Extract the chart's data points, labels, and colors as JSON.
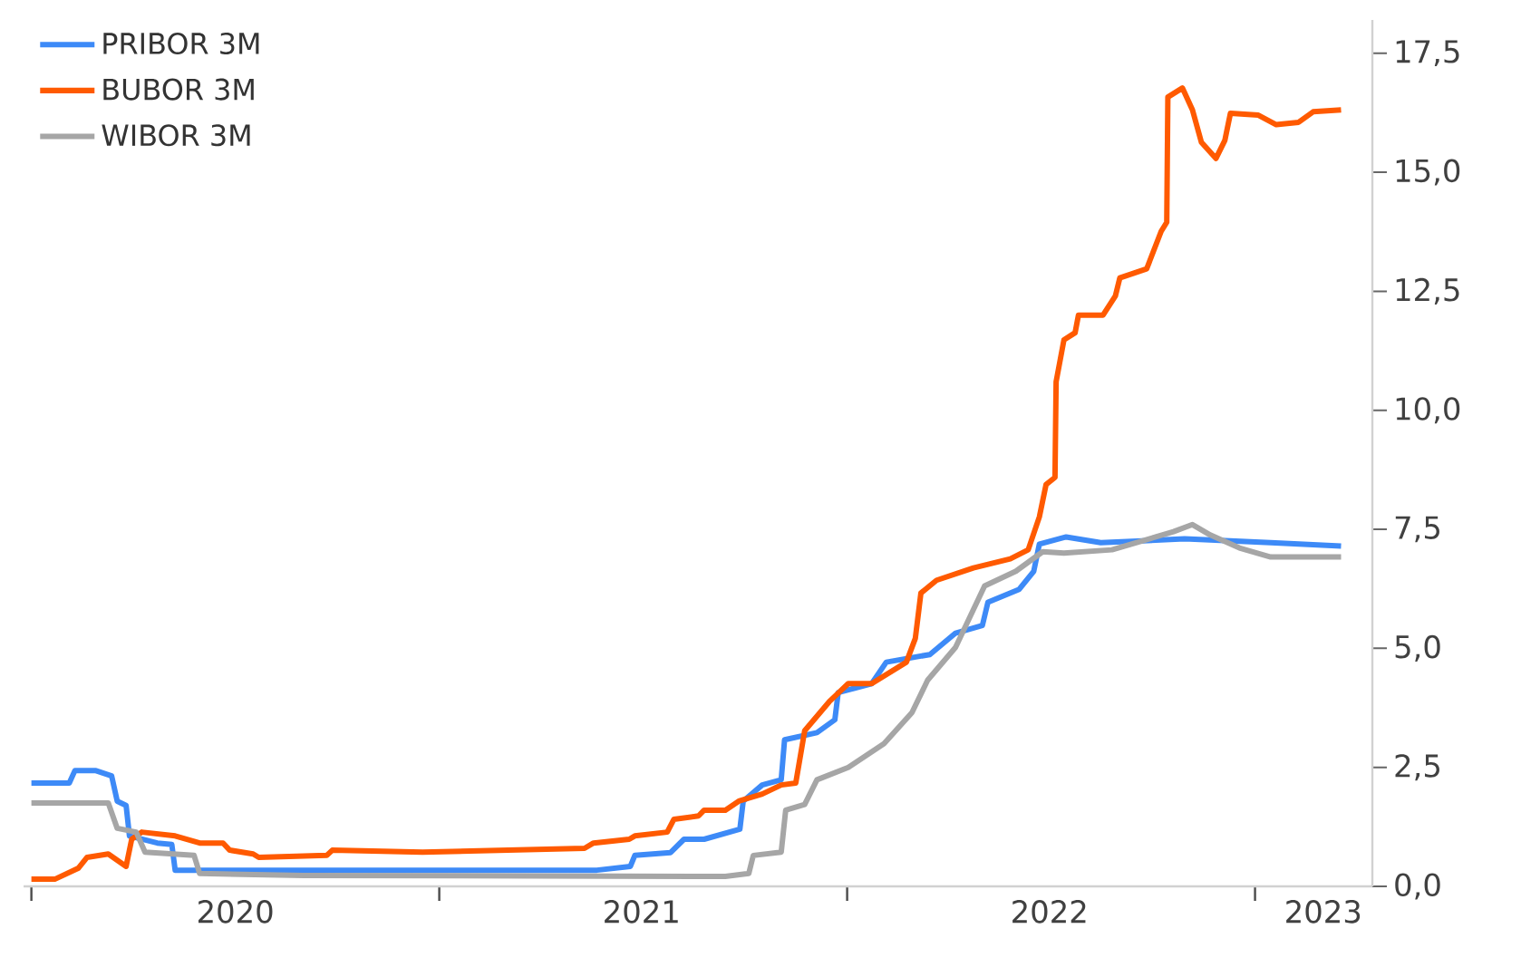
{
  "chart_data": {
    "type": "line",
    "xlim": [
      "2019-12-25",
      "2023-04-16"
    ],
    "ylim": [
      0,
      18.2
    ],
    "xticks": [
      {
        "value": "2020-01-01",
        "label": null
      },
      {
        "value": "2021-01-01",
        "label": null
      },
      {
        "value": "2022-01-01",
        "label": null
      },
      {
        "value": "2023-01-01",
        "label": null
      },
      {
        "value": "2020-07-02",
        "label": "2020"
      },
      {
        "value": "2021-07-01",
        "label": "2021"
      },
      {
        "value": "2022-07-01",
        "label": "2022"
      },
      {
        "value": "2023-03-03",
        "label": "2023"
      }
    ],
    "yticks": [
      {
        "value": 0,
        "label": "0,0"
      },
      {
        "value": 2.5,
        "label": "2,5"
      },
      {
        "value": 5,
        "label": "5,0"
      },
      {
        "value": 7.5,
        "label": "7,5"
      },
      {
        "value": 10,
        "label": "10,0"
      },
      {
        "value": 12.5,
        "label": "12,5"
      },
      {
        "value": 15,
        "label": "15,0"
      },
      {
        "value": 17.5,
        "label": "17,5"
      }
    ],
    "legend": "top left",
    "series": [
      {
        "name": "PRIBOR 3M",
        "color": "#3d8af7",
        "x": [
          "2020-01-01",
          "2020-02-04",
          "2020-02-09",
          "2020-02-28",
          "2020-03-13",
          "2020-03-18",
          "2020-03-26",
          "2020-03-29",
          "2020-04-23",
          "2020-05-06",
          "2020-05-09",
          "2021-05-22",
          "2021-06-21",
          "2021-06-25",
          "2021-07-27",
          "2021-08-08",
          "2021-08-26",
          "2021-09-27",
          "2021-09-30",
          "2021-10-17",
          "2021-11-03",
          "2021-11-06",
          "2021-12-05",
          "2021-12-21",
          "2021-12-24",
          "2022-01-23",
          "2022-02-05",
          "2022-03-16",
          "2022-04-08",
          "2022-05-02",
          "2022-05-07",
          "2022-06-04",
          "2022-06-17",
          "2022-06-22",
          "2022-07-16",
          "2022-08-16",
          "2022-10-30",
          "2023-01-15",
          "2023-03-19"
        ],
        "values": [
          2.17,
          2.17,
          2.43,
          2.43,
          2.32,
          1.79,
          1.7,
          1.06,
          0.91,
          0.88,
          0.34,
          0.34,
          0.42,
          0.65,
          0.71,
          0.99,
          0.99,
          1.2,
          1.79,
          2.13,
          2.24,
          3.08,
          3.23,
          3.5,
          4.07,
          4.26,
          4.71,
          4.87,
          5.32,
          5.48,
          5.97,
          6.24,
          6.62,
          7.19,
          7.34,
          7.22,
          7.3,
          7.22,
          7.15
        ]
      },
      {
        "name": "BUBOR 3M",
        "color": "#ff5a00",
        "x": [
          "2020-01-01",
          "2020-01-22",
          "2020-02-12",
          "2020-02-20",
          "2020-03-10",
          "2020-03-26",
          "2020-03-31",
          "2020-04-09",
          "2020-05-09",
          "2020-05-31",
          "2020-06-21",
          "2020-06-27",
          "2020-07-18",
          "2020-07-23",
          "2020-09-22",
          "2020-09-27",
          "2020-12-17",
          "2021-05-11",
          "2021-05-19",
          "2021-06-20",
          "2021-06-25",
          "2021-07-24",
          "2021-07-30",
          "2021-08-21",
          "2021-08-26",
          "2021-09-14",
          "2021-09-26",
          "2021-10-17",
          "2021-11-03",
          "2021-11-16",
          "2021-11-24",
          "2021-12-16",
          "2022-01-02",
          "2022-01-23",
          "2022-02-23",
          "2022-03-03",
          "2022-03-08",
          "2022-03-22",
          "2022-04-24",
          "2022-05-27",
          "2022-06-12",
          "2022-06-22",
          "2022-06-28",
          "2022-07-06",
          "2022-07-07",
          "2022-07-14",
          "2022-07-24",
          "2022-07-27",
          "2022-08-18",
          "2022-08-29",
          "2022-09-02",
          "2022-09-26",
          "2022-10-09",
          "2022-10-14",
          "2022-10-15",
          "2022-10-28",
          "2022-11-06",
          "2022-11-14",
          "2022-11-27",
          "2022-12-05",
          "2022-12-10",
          "2023-01-04",
          "2023-01-20",
          "2023-02-09",
          "2023-02-22",
          "2023-03-19"
        ],
        "values": [
          0.15,
          0.15,
          0.38,
          0.61,
          0.68,
          0.42,
          0.99,
          1.14,
          1.06,
          0.91,
          0.91,
          0.76,
          0.68,
          0.61,
          0.65,
          0.76,
          0.72,
          0.8,
          0.91,
          0.99,
          1.06,
          1.14,
          1.41,
          1.48,
          1.6,
          1.6,
          1.79,
          1.94,
          2.13,
          2.17,
          3.27,
          3.88,
          4.26,
          4.26,
          4.71,
          5.21,
          6.16,
          6.43,
          6.69,
          6.88,
          7.07,
          7.76,
          8.44,
          8.59,
          10.6,
          11.48,
          11.63,
          12.0,
          12.0,
          12.4,
          12.78,
          12.97,
          13.76,
          13.95,
          16.58,
          16.77,
          16.31,
          15.63,
          15.29,
          15.67,
          16.24,
          16.2,
          16.0,
          16.05,
          16.27,
          16.31
        ]
      },
      {
        "name": "WIBOR 3M",
        "color": "#a6a6a6",
        "x": [
          "2020-01-01",
          "2020-03-10",
          "2020-03-18",
          "2020-04-04",
          "2020-04-12",
          "2020-05-26",
          "2020-05-31",
          "2020-09-01",
          "2021-09-14",
          "2021-10-05",
          "2021-10-09",
          "2021-11-03",
          "2021-11-07",
          "2021-11-24",
          "2021-12-05",
          "2022-01-02",
          "2022-02-03",
          "2022-02-28",
          "2022-03-14",
          "2022-04-08",
          "2022-05-04",
          "2022-06-01",
          "2022-06-25",
          "2022-07-14",
          "2022-08-26",
          "2022-10-20",
          "2022-11-06",
          "2022-11-22",
          "2022-12-18",
          "2023-01-15",
          "2023-03-19"
        ],
        "values": [
          1.75,
          1.75,
          1.22,
          1.14,
          0.72,
          0.65,
          0.27,
          0.23,
          0.21,
          0.27,
          0.65,
          0.72,
          1.6,
          1.72,
          2.24,
          2.5,
          3.0,
          3.65,
          4.33,
          5.02,
          6.31,
          6.62,
          7.03,
          7.0,
          7.07,
          7.45,
          7.6,
          7.38,
          7.11,
          6.92,
          6.92
        ]
      }
    ]
  }
}
